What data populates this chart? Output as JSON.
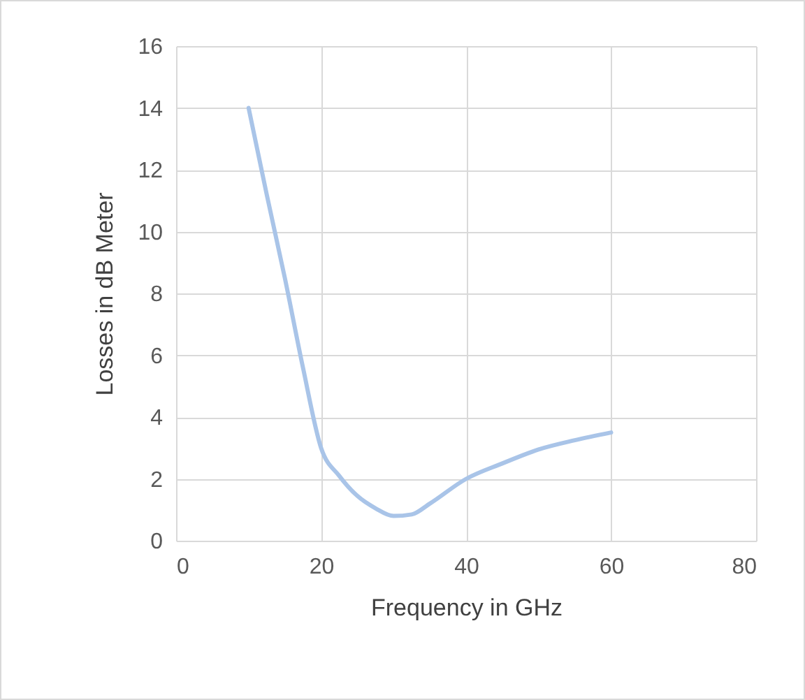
{
  "chart_data": {
    "type": "line",
    "xlabel": "Frequency in GHz",
    "ylabel": "Losses in dB Meter",
    "x": [
      10,
      12.5,
      15,
      17.5,
      20,
      22.5,
      25,
      27.5,
      30,
      32.5,
      35,
      40,
      45,
      50,
      55,
      60
    ],
    "series": [
      {
        "color": "#a9c4e8",
        "values": [
          14,
          11.2,
          8.5,
          5.6,
          3,
          2.1,
          1.45,
          1.05,
          0.8,
          0.85,
          1.2,
          2,
          2.5,
          2.95,
          3.25,
          3.5
        ]
      }
    ],
    "xlim": [
      0,
      80
    ],
    "xticks": [
      0,
      20,
      40,
      60,
      80
    ],
    "ylim": [
      0,
      16
    ],
    "yticks": [
      0,
      2,
      4,
      6,
      8,
      10,
      12,
      14,
      16
    ],
    "grid": true,
    "legend": false,
    "marker": "none",
    "line_style": "solid"
  }
}
